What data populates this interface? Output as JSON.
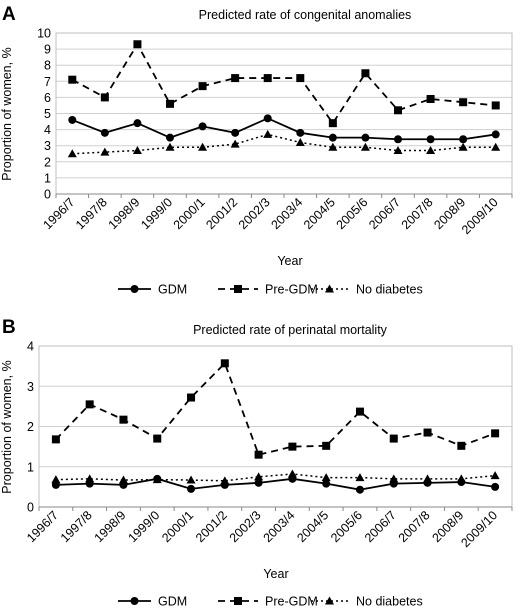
{
  "chart_data": [
    {
      "panel": "A",
      "type": "line",
      "title": "Predicted rate of congenital anomalies",
      "xlabel": "Year",
      "ylabel": "Proportion of women, %",
      "ylim": [
        0,
        10
      ],
      "yticks": [
        0,
        1,
        2,
        3,
        4,
        5,
        6,
        7,
        8,
        9,
        10
      ],
      "grid": true,
      "legend_position": "bottom",
      "categories": [
        "1996/7",
        "1997/8",
        "1998/9",
        "1999/0",
        "2000/1",
        "2001/2",
        "2002/3",
        "2003/4",
        "2004/5",
        "2005/6",
        "2006/7",
        "2007/8",
        "2008/9",
        "2009/10"
      ],
      "series": [
        {
          "name": "GDM",
          "style": "solid",
          "marker": "circle",
          "values": [
            4.6,
            3.8,
            4.4,
            3.5,
            4.2,
            3.8,
            4.7,
            3.8,
            3.5,
            3.5,
            3.4,
            3.4,
            3.4,
            3.7
          ]
        },
        {
          "name": "Pre-GDM",
          "style": "dashed",
          "marker": "square",
          "values": [
            7.1,
            6.0,
            9.3,
            5.6,
            6.7,
            7.2,
            7.2,
            7.2,
            4.4,
            7.5,
            5.2,
            5.9,
            5.7,
            5.5
          ]
        },
        {
          "name": "No diabetes",
          "style": "dotted",
          "marker": "triangle",
          "values": [
            2.5,
            2.6,
            2.7,
            2.9,
            2.9,
            3.1,
            3.7,
            3.2,
            2.9,
            2.9,
            2.7,
            2.7,
            2.9,
            2.9
          ]
        }
      ]
    },
    {
      "panel": "B",
      "type": "line",
      "title": "Predicted rate of perinatal mortality",
      "xlabel": "Year",
      "ylabel": "Proportion of women, %",
      "ylim": [
        0,
        4
      ],
      "yticks": [
        0,
        1,
        2,
        3,
        4
      ],
      "grid": true,
      "legend_position": "bottom",
      "categories": [
        "1996/7",
        "1997/8",
        "1998/9",
        "1999/0",
        "2000/1",
        "2001/2",
        "2002/3",
        "2003/4",
        "2004/5",
        "2005/6",
        "2006/7",
        "2007/8",
        "2008/9",
        "2009/10"
      ],
      "series": [
        {
          "name": "GDM",
          "style": "solid",
          "marker": "circle",
          "values": [
            0.55,
            0.58,
            0.55,
            0.7,
            0.45,
            0.55,
            0.6,
            0.7,
            0.58,
            0.43,
            0.58,
            0.6,
            0.62,
            0.5
          ]
        },
        {
          "name": "Pre-GDM",
          "style": "dashed",
          "marker": "square",
          "values": [
            1.68,
            2.55,
            2.17,
            1.7,
            2.72,
            3.57,
            1.3,
            1.5,
            1.52,
            2.37,
            1.7,
            1.85,
            1.52,
            1.83
          ]
        },
        {
          "name": "No diabetes",
          "style": "dotted",
          "marker": "triangle",
          "values": [
            0.68,
            0.7,
            0.67,
            0.68,
            0.67,
            0.65,
            0.75,
            0.82,
            0.73,
            0.73,
            0.7,
            0.7,
            0.7,
            0.78
          ]
        }
      ]
    }
  ]
}
